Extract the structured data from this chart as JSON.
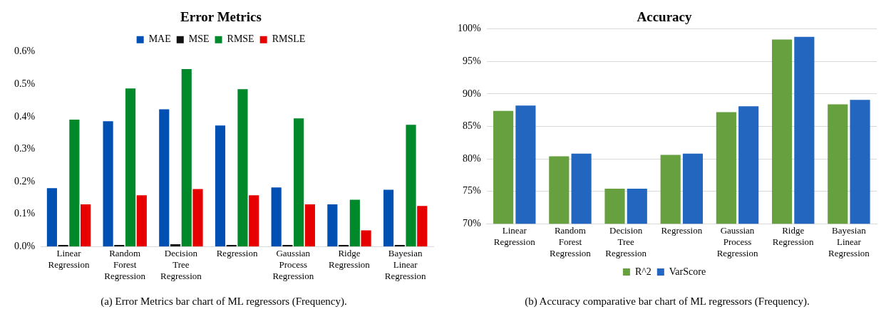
{
  "chart_data": [
    {
      "type": "bar",
      "title": "Error Metrics",
      "categories": [
        "Linear Regression",
        "Random Forest Regression",
        "Decision Tree Regression",
        "Regression",
        "Gaussian Process Regression",
        "Ridge Regression",
        "Bayesian Linear Regression"
      ],
      "series": [
        {
          "name": "MAE",
          "color": "#0050b4",
          "values": [
            0.18,
            0.386,
            0.423,
            0.373,
            0.182,
            0.13,
            0.175
          ]
        },
        {
          "name": "MSE",
          "color": "#111111",
          "values": [
            0.005,
            0.005,
            0.007,
            0.005,
            0.005,
            0.005,
            0.005
          ]
        },
        {
          "name": "RMSE",
          "color": "#00892a",
          "values": [
            0.391,
            0.487,
            0.547,
            0.485,
            0.395,
            0.144,
            0.375
          ]
        },
        {
          "name": "RMSLE",
          "color": "#e60000",
          "values": [
            0.13,
            0.158,
            0.177,
            0.158,
            0.13,
            0.05,
            0.125
          ]
        }
      ],
      "ylim": [
        0,
        0.6
      ],
      "yticks": [
        {
          "value": 0,
          "label": "0.0%"
        },
        {
          "value": 0.1,
          "label": "0.1%"
        },
        {
          "value": 0.2,
          "label": "0.2%"
        },
        {
          "value": 0.3,
          "label": "0.3%"
        },
        {
          "value": 0.4,
          "label": "0.4%"
        },
        {
          "value": 0.5,
          "label": "0.5%"
        },
        {
          "value": 0.6,
          "label": "0.6%"
        }
      ],
      "grid": false,
      "legend": "top",
      "annotations": [
        "(a) Error Metrics bar chart of ML regressors (Frequency)."
      ]
    },
    {
      "type": "bar",
      "title": "Accuracy",
      "categories": [
        "Linear Regression",
        "Random Forest Regression",
        "Decision Tree Regression",
        "Regression",
        "Gaussian Process Regression",
        "Ridge Regression",
        "Bayesian Linear Regression"
      ],
      "series": [
        {
          "name": "R^2",
          "color": "#66a03f",
          "values": [
            87.4,
            80.4,
            75.4,
            80.6,
            87.2,
            98.4,
            88.4
          ]
        },
        {
          "name": "VarScore",
          "color": "#2266c0",
          "values": [
            88.2,
            80.8,
            75.4,
            80.8,
            88.1,
            98.8,
            89.1
          ]
        }
      ],
      "ylim": [
        70,
        100
      ],
      "yticks": [
        {
          "value": 70,
          "label": "70%"
        },
        {
          "value": 75,
          "label": "75%"
        },
        {
          "value": 80,
          "label": "80%"
        },
        {
          "value": 85,
          "label": "85%"
        },
        {
          "value": 90,
          "label": "90%"
        },
        {
          "value": 95,
          "label": "95%"
        },
        {
          "value": 100,
          "label": "100%"
        }
      ],
      "grid": "y",
      "legend": "bottom",
      "annotations": [
        "(b) Accuracy comparative bar chart of ML regressors (Frequency)."
      ]
    }
  ]
}
